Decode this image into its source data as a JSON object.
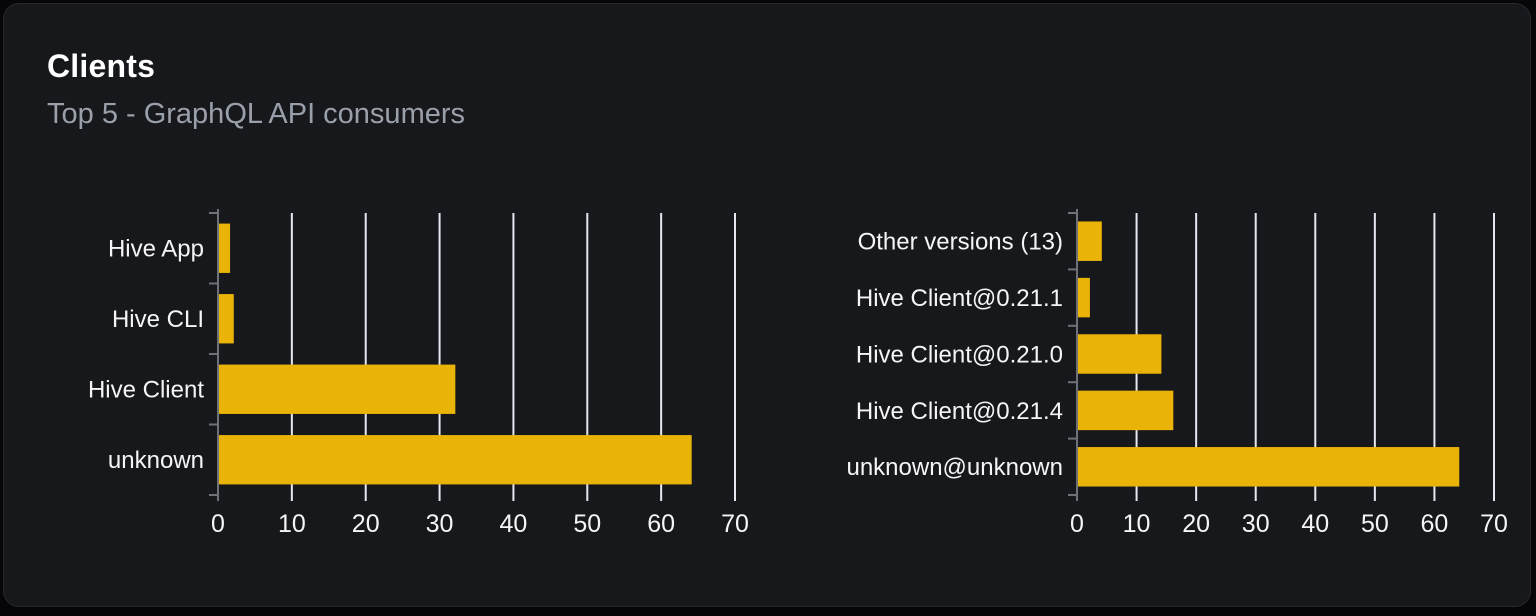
{
  "card": {
    "title": "Clients",
    "subtitle": "Top 5 - GraphQL API consumers"
  },
  "colors": {
    "page_bg": "#060608",
    "card_bg": "#16181c",
    "card_border": "#26282e",
    "title": "#ffffff",
    "subtitle": "#9aa0aa",
    "bar": "#eab308",
    "gridline": "#e3e8f0",
    "axis": "#6e7177",
    "tick_label": "#f5f5f6",
    "category_label": "#f5f5f6"
  },
  "chart_data": [
    {
      "type": "bar",
      "orientation": "horizontal",
      "categories": [
        "Hive App",
        "Hive CLI",
        "Hive Client",
        "unknown"
      ],
      "values": [
        1.5,
        2,
        32,
        64
      ],
      "xlim": [
        0,
        70
      ],
      "xticks": [
        0,
        10,
        20,
        30,
        40,
        50,
        60,
        70
      ],
      "grid": true,
      "legend": false,
      "title": "",
      "xlabel": "",
      "ylabel": ""
    },
    {
      "type": "bar",
      "orientation": "horizontal",
      "categories": [
        "Other versions (13)",
        "Hive Client@0.21.1",
        "Hive Client@0.21.0",
        "Hive Client@0.21.4",
        "unknown@unknown"
      ],
      "values": [
        4,
        2,
        14,
        16,
        64
      ],
      "xlim": [
        0,
        70
      ],
      "xticks": [
        0,
        10,
        20,
        30,
        40,
        50,
        60,
        70
      ],
      "grid": true,
      "legend": false,
      "title": "",
      "xlabel": "",
      "ylabel": ""
    }
  ]
}
